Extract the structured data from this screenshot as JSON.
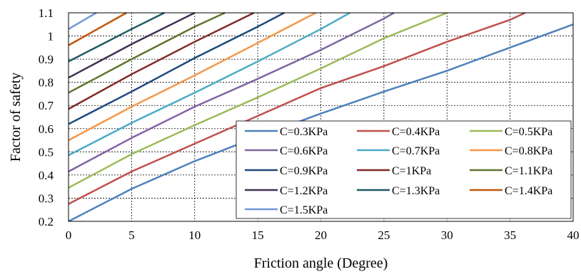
{
  "chart_data": {
    "type": "line",
    "xlabel": "Friction angle (Degree)",
    "ylabel": "Factor of safety",
    "xlim": [
      0,
      40
    ],
    "ylim": [
      0.2,
      1.1
    ],
    "xticks": [
      0,
      5,
      10,
      15,
      20,
      25,
      30,
      35,
      40
    ],
    "yticks": [
      0.2,
      0.3,
      0.4,
      0.5,
      0.6,
      0.7,
      0.8,
      0.9,
      1,
      1.1
    ],
    "grid": "dashed",
    "legend_position": "bottom-right",
    "series": [
      {
        "name": "C=0.3KPa",
        "color": "#4f81bd",
        "x": [
          0,
          5,
          10,
          15,
          20,
          25,
          30,
          35,
          40
        ],
        "y": [
          0.2,
          0.34,
          0.46,
          0.565,
          0.665,
          0.76,
          0.85,
          0.95,
          1.05
        ]
      },
      {
        "name": "C=0.4KPa",
        "color": "#c0504d",
        "x": [
          0,
          5,
          10,
          15,
          20,
          25,
          30,
          35,
          36.2
        ],
        "y": [
          0.275,
          0.415,
          0.535,
          0.655,
          0.775,
          0.87,
          0.975,
          1.07,
          1.1
        ]
      },
      {
        "name": "C=0.5KPa",
        "color": "#9bbb59",
        "x": [
          0,
          5,
          10,
          15,
          20,
          25,
          30
        ],
        "y": [
          0.345,
          0.49,
          0.615,
          0.735,
          0.86,
          0.99,
          1.1
        ]
      },
      {
        "name": "C=0.6KPa",
        "color": "#8064a2",
        "x": [
          0,
          5,
          10,
          15,
          20,
          25,
          25.8
        ],
        "y": [
          0.415,
          0.56,
          0.695,
          0.815,
          0.94,
          1.075,
          1.1
        ]
      },
      {
        "name": "C=0.7KPa",
        "color": "#4bacc6",
        "x": [
          0,
          5,
          10,
          15,
          20,
          22.3
        ],
        "y": [
          0.485,
          0.625,
          0.755,
          0.89,
          1.03,
          1.1
        ]
      },
      {
        "name": "C=0.8KPa",
        "color": "#f79646",
        "x": [
          0,
          5,
          10,
          15,
          19.6
        ],
        "y": [
          0.55,
          0.695,
          0.83,
          0.97,
          1.1
        ]
      },
      {
        "name": "C=0.9KPa",
        "color": "#1f497d",
        "x": [
          0,
          5,
          10,
          15,
          17.1
        ],
        "y": [
          0.62,
          0.76,
          0.905,
          1.04,
          1.1
        ]
      },
      {
        "name": "C=1KPa",
        "color": "#7f2a28",
        "x": [
          0,
          5,
          10,
          14.7
        ],
        "y": [
          0.685,
          0.835,
          0.975,
          1.1
        ]
      },
      {
        "name": "C=1.1KPa",
        "color": "#5f7530",
        "x": [
          0,
          5,
          10,
          12.4
        ],
        "y": [
          0.755,
          0.9,
          1.04,
          1.1
        ]
      },
      {
        "name": "C=1.2KPa",
        "color": "#403151",
        "x": [
          0,
          5,
          10
        ],
        "y": [
          0.82,
          0.965,
          1.1
        ]
      },
      {
        "name": "C=1.3KPa",
        "color": "#215967",
        "x": [
          0,
          5,
          7.6
        ],
        "y": [
          0.89,
          1.03,
          1.1
        ]
      },
      {
        "name": "C=1.4KPa",
        "color": "#c0580c",
        "x": [
          0,
          4.6
        ],
        "y": [
          0.96,
          1.1
        ]
      },
      {
        "name": "C=1.5KPa",
        "color": "#6f98d4",
        "x": [
          0,
          2.2
        ],
        "y": [
          1.03,
          1.1
        ]
      }
    ]
  }
}
